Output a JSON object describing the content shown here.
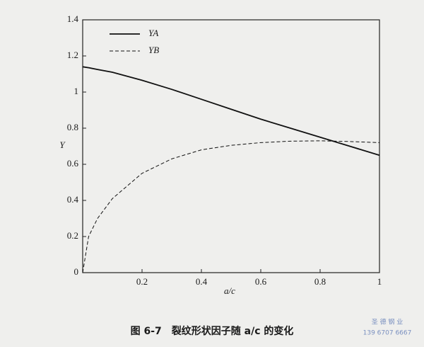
{
  "chart_data": {
    "type": "line",
    "x_label": "a/c",
    "y_label": "Y",
    "x": [
      0,
      0.02,
      0.05,
      0.1,
      0.2,
      0.3,
      0.4,
      0.5,
      0.6,
      0.7,
      0.8,
      0.9,
      1
    ],
    "series": [
      {
        "name": "YA",
        "color": "#111111",
        "dash": "solid",
        "values": [
          1.14,
          1.135,
          1.125,
          1.11,
          1.065,
          1.015,
          0.96,
          0.905,
          0.85,
          0.8,
          0.75,
          0.7,
          0.65
        ]
      },
      {
        "name": "YB",
        "color": "#111111",
        "dash": "dashed",
        "values": [
          0,
          0.2,
          0.3,
          0.41,
          0.55,
          0.63,
          0.68,
          0.705,
          0.72,
          0.728,
          0.73,
          0.726,
          0.72
        ]
      }
    ],
    "xlim": [
      0,
      1
    ],
    "xticks": [
      0.2,
      0.4,
      0.6,
      0.8,
      1
    ],
    "ylim": [
      0,
      1.4
    ],
    "yticks": [
      0,
      0.2,
      0.4,
      0.6,
      0.8,
      1,
      1.2,
      1.4
    ],
    "caption": "图 6-7　裂纹形状因子随 a/c 的变化",
    "watermark": [
      "圣 德 钢 业",
      "139 6707 6667"
    ]
  }
}
